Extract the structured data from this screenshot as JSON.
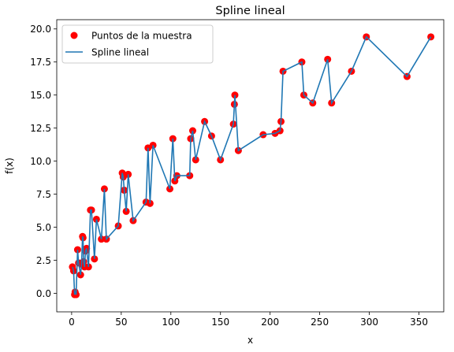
{
  "chart_data": {
    "type": "line",
    "title": "Spline lineal",
    "xlabel": "x",
    "ylabel": "f(x)",
    "xlim": [
      -15,
      375
    ],
    "ylim": [
      -1.4,
      20.7
    ],
    "xticks": [
      0,
      50,
      100,
      150,
      200,
      250,
      300,
      350
    ],
    "yticks": [
      0.0,
      2.5,
      5.0,
      7.5,
      10.0,
      12.5,
      15.0,
      17.5,
      20.0
    ],
    "xtick_labels": [
      "0",
      "50",
      "100",
      "150",
      "200",
      "250",
      "300",
      "350"
    ],
    "ytick_labels": [
      "0.0",
      "2.5",
      "5.0",
      "7.5",
      "10.0",
      "12.5",
      "15.0",
      "17.5",
      "20.0"
    ],
    "legend_position": "upper-left",
    "grid": false,
    "colors": {
      "points": "#ff0000",
      "line": "#1f77b4"
    },
    "series": [
      {
        "name": "Puntos de la muestra",
        "kind": "scatter",
        "x": [
          0.8,
          2,
          3,
          3.5,
          4.5,
          6,
          7,
          9,
          10,
          11,
          11.5,
          12,
          13,
          14,
          15,
          17,
          19,
          20,
          23,
          25,
          30,
          33,
          35,
          47,
          51,
          52,
          53,
          55,
          57,
          62,
          75,
          77,
          79,
          82,
          99,
          102,
          104,
          106,
          119,
          120,
          122,
          125,
          134,
          141,
          150,
          163,
          164,
          164.5,
          168,
          193,
          205,
          210,
          211,
          213,
          232,
          234,
          243,
          258,
          262,
          282,
          297,
          338,
          362
        ],
        "y": [
          2.0,
          1.7,
          -0.1,
          0.1,
          -0.1,
          3.3,
          2.3,
          1.4,
          2.2,
          4.3,
          4.2,
          2.4,
          2.0,
          3.2,
          3.4,
          2.0,
          6.3,
          6.3,
          2.6,
          5.6,
          4.1,
          7.9,
          4.1,
          5.1,
          9.1,
          8.8,
          7.8,
          6.2,
          9.0,
          5.5,
          6.9,
          11.0,
          6.8,
          11.2,
          7.9,
          11.7,
          8.5,
          8.9,
          8.9,
          11.7,
          12.3,
          10.1,
          13.0,
          11.9,
          10.1,
          12.8,
          14.3,
          15.0,
          10.8,
          12.0,
          12.1,
          12.3,
          13.0,
          16.8,
          17.5,
          15.0,
          14.4,
          17.7,
          14.4,
          16.8,
          19.4,
          16.4,
          19.4
        ]
      },
      {
        "name": "Spline lineal",
        "kind": "line"
      }
    ]
  }
}
